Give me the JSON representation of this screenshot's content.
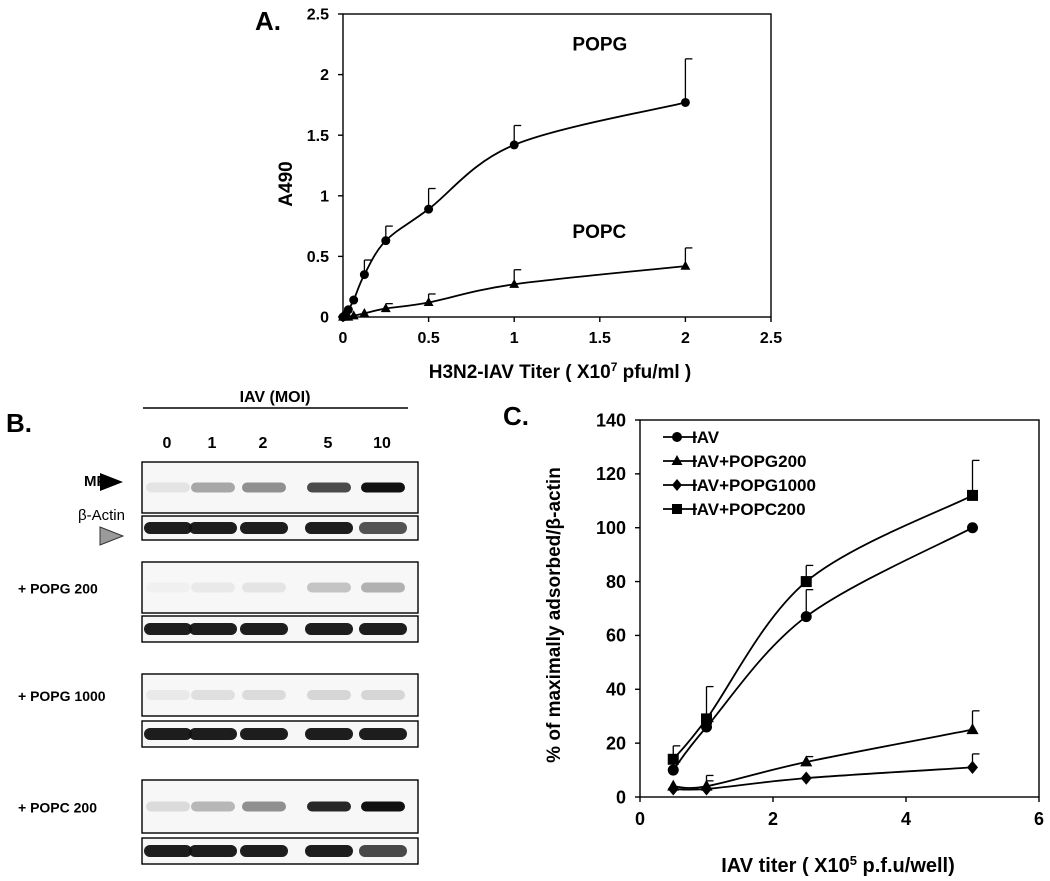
{
  "panel_a": {
    "letter": "A.",
    "ylabel": "A490",
    "xlabel_prefix": "H3N2-IAV Titer ( X10",
    "xlabel_exp": "7",
    "xlabel_suffix": " pfu/ml )"
  },
  "panel_b": {
    "letter": "B.",
    "header": "IAV (MOI)",
    "lanes": [
      "0",
      "1",
      "2",
      "5",
      "10"
    ],
    "mp_label": "MP",
    "actin_label": "β-Actin",
    "colors": {
      "mp_arrow": "#000000",
      "actin_arrow": "#9a9a9a",
      "band": "#111111"
    },
    "blots": [
      {
        "label": "",
        "mp": [
          0.08,
          0.35,
          0.45,
          0.75,
          1.0
        ],
        "actin": [
          1,
          1,
          1,
          1,
          0.75
        ]
      },
      {
        "label": "+ POPG 200",
        "mp": [
          0.03,
          0.06,
          0.08,
          0.22,
          0.3
        ],
        "actin": [
          1,
          1,
          1,
          1,
          1
        ]
      },
      {
        "label": "+ POPG 1000",
        "mp": [
          0.06,
          0.1,
          0.12,
          0.14,
          0.14
        ],
        "actin": [
          1,
          1,
          1,
          1,
          1
        ]
      },
      {
        "label": "+ POPC 200",
        "mp": [
          0.12,
          0.28,
          0.45,
          0.9,
          1.0
        ],
        "actin": [
          1,
          1,
          1,
          1,
          0.8
        ]
      }
    ]
  },
  "panel_c": {
    "letter": "C.",
    "ylabel": "% of maximally adsorbed/β-actin",
    "xlabel_prefix": "IAV titer ( X10",
    "xlabel_exp": "5",
    "xlabel_suffix": " p.f.u/well)"
  },
  "chart_data": [
    {
      "type": "line",
      "x_ticks": [
        "0",
        "0.5",
        "1",
        "1.5",
        "2",
        "2.5"
      ],
      "y_ticks": [
        "0",
        "0.5",
        "1",
        "1.5",
        "2",
        "2.5"
      ],
      "xlim": [
        0,
        2.5
      ],
      "ylim": [
        0,
        2.5
      ],
      "grid": false,
      "series": [
        {
          "name": "POPG",
          "marker": "circle",
          "x": [
            0,
            0.0156,
            0.03125,
            0.0625,
            0.125,
            0.25,
            0.5,
            1,
            2
          ],
          "y": [
            0,
            0.02,
            0.06,
            0.14,
            0.35,
            0.63,
            0.89,
            1.42,
            1.77
          ],
          "err": [
            0,
            0,
            0,
            0,
            0.12,
            0.12,
            0.17,
            0.16,
            0.36
          ]
        },
        {
          "name": "POPC",
          "marker": "triangle",
          "x": [
            0,
            0.0156,
            0.03125,
            0.0625,
            0.125,
            0.25,
            0.5,
            1,
            2
          ],
          "y": [
            0,
            0,
            0,
            0.01,
            0.03,
            0.07,
            0.12,
            0.27,
            0.42
          ],
          "err": [
            0,
            0,
            0,
            0,
            0,
            0.04,
            0.07,
            0.12,
            0.15
          ]
        }
      ]
    },
    {
      "type": "line",
      "x_ticks": [
        "0",
        "2",
        "4",
        "6"
      ],
      "y_ticks": [
        "0",
        "20",
        "40",
        "60",
        "80",
        "100",
        "120",
        "140"
      ],
      "xlim": [
        0,
        6
      ],
      "ylim": [
        0,
        140
      ],
      "grid": false,
      "legend": "top-left",
      "series": [
        {
          "name": "IAV",
          "marker": "circle",
          "x": [
            0.5,
            1,
            2.5,
            5
          ],
          "y": [
            10,
            26,
            67,
            100
          ],
          "err": [
            3,
            2,
            10,
            0
          ]
        },
        {
          "name": "IAV+POPG200",
          "marker": "triangle",
          "x": [
            0.5,
            1,
            2.5,
            5
          ],
          "y": [
            4,
            4,
            13,
            25
          ],
          "err": [
            0,
            4,
            2,
            7
          ]
        },
        {
          "name": "IAV+POPG1000",
          "marker": "diamond",
          "x": [
            0.5,
            1,
            2.5,
            5
          ],
          "y": [
            3,
            3,
            7,
            11
          ],
          "err": [
            0,
            3,
            0,
            5
          ]
        },
        {
          "name": "IAV+POPC200",
          "marker": "square",
          "x": [
            0.5,
            1,
            2.5,
            5
          ],
          "y": [
            14,
            29,
            80,
            112
          ],
          "err": [
            5,
            12,
            6,
            13
          ]
        }
      ]
    }
  ]
}
